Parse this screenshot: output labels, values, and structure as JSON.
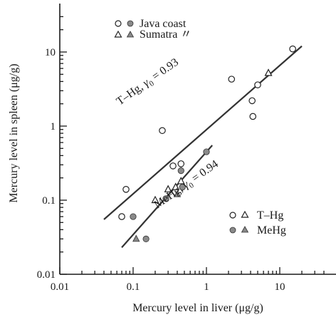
{
  "chart_data": {
    "type": "scatter",
    "title": "",
    "xlabel": "Mercury level in liver (μg/g)",
    "ylabel": "Mercury level in spleen (μg/g)",
    "xscale": "log",
    "yscale": "log",
    "xlim": [
      0.01,
      40
    ],
    "ylim": [
      0.01,
      30
    ],
    "xticks": [
      {
        "value": 0.01,
        "label": "0.01"
      },
      {
        "value": 0.1,
        "label": "0.1"
      },
      {
        "value": 1,
        "label": "1"
      },
      {
        "value": 10,
        "label": "10"
      }
    ],
    "yticks": [
      {
        "value": 0.01,
        "label": "0.01"
      },
      {
        "value": 0.1,
        "label": "0.1"
      },
      {
        "value": 1,
        "label": "1"
      },
      {
        "value": 10,
        "label": "10"
      }
    ],
    "grid": false,
    "legends": [
      {
        "placement": "top-left",
        "entries": [
          "Java coast",
          "Sumatra 〃"
        ]
      },
      {
        "placement": "bottom-right",
        "entries": [
          "T–Hg",
          "MeHg"
        ]
      }
    ],
    "series": [
      {
        "name": "T–Hg",
        "region": "Java coast",
        "marker": "open-circle",
        "x": [
          0.07,
          0.08,
          0.25,
          0.35,
          0.45,
          2.2,
          4.2,
          4.3,
          5.0,
          15.0
        ],
        "y": [
          0.06,
          0.14,
          0.87,
          0.29,
          0.31,
          4.3,
          2.2,
          1.35,
          3.6,
          11.0
        ]
      },
      {
        "name": "MeHg",
        "region": "Java coast",
        "marker": "filled-circle",
        "x": [
          0.1,
          0.15,
          0.28,
          0.45,
          0.47,
          1.0
        ],
        "y": [
          0.06,
          0.03,
          0.105,
          0.25,
          0.15,
          0.45
        ]
      },
      {
        "name": "T–Hg",
        "region": "Sumatra",
        "marker": "open-triangle",
        "x": [
          0.2,
          0.3,
          0.38,
          0.45,
          7.0
        ],
        "y": [
          0.1,
          0.14,
          0.15,
          0.18,
          5.2
        ]
      },
      {
        "name": "MeHg",
        "region": "Sumatra",
        "marker": "filled-triangle",
        "x": [
          0.11,
          0.4
        ],
        "y": [
          0.03,
          0.12
        ]
      }
    ],
    "fits": [
      {
        "name": "T–Hg",
        "x": [
          0.04,
          20
        ],
        "y": [
          0.055,
          12
        ]
      },
      {
        "name": "MeHg",
        "x": [
          0.07,
          1.2
        ],
        "y": [
          0.023,
          0.55
        ]
      }
    ],
    "annotations": [
      {
        "prefix": "T–Hg, ",
        "r_symbol": "γ",
        "r_sub": "0",
        "r_value": " = 0.93"
      },
      {
        "prefix": "MeHg, ",
        "r_symbol": "γ",
        "r_sub": "0",
        "r_value": " = 0.94"
      }
    ]
  }
}
